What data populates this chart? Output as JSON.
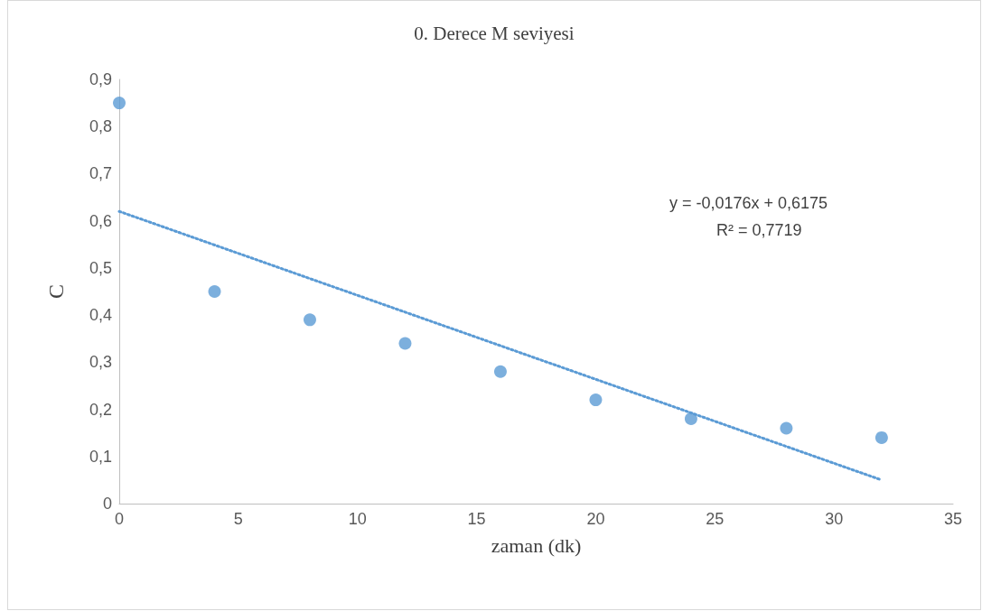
{
  "chart_data": {
    "type": "scatter",
    "title": "0. Derece M seviyesi",
    "xlabel": "zaman (dk)",
    "ylabel": "C",
    "annotations": [
      "y = -0,0176x + 0,6175",
      "R² = 0,7719"
    ],
    "x": [
      0,
      4,
      8,
      12,
      16,
      20,
      24,
      28,
      32
    ],
    "series": [
      {
        "color": "#5b9bd5",
        "marker": "circle",
        "values": [
          0.85,
          0.45,
          0.39,
          0.34,
          0.28,
          0.22,
          0.18,
          0.16,
          0.14
        ]
      },
      {
        "type": "line",
        "color": "#5b9bd5",
        "marker": "none",
        "line_style": "dotted",
        "x": [
          0,
          32
        ],
        "values": [
          0.62,
          0.05
        ]
      }
    ],
    "xlim": [
      0,
      35
    ],
    "xticks": [
      0,
      5,
      10,
      15,
      20,
      25,
      30,
      35
    ],
    "ylim": [
      0,
      0.9
    ],
    "yticks": [
      0,
      {
        "value": 0.1,
        "label": "0,1"
      },
      {
        "value": 0.2,
        "label": "0,2"
      },
      {
        "value": 0.3,
        "label": "0,3"
      },
      {
        "value": 0.4,
        "label": "0,4"
      },
      {
        "value": 0.5,
        "label": "0,5"
      },
      {
        "value": 0.6,
        "label": "0,6"
      },
      {
        "value": 0.7,
        "label": "0,7"
      },
      {
        "value": 0.8,
        "label": "0,8"
      },
      {
        "value": 0.9,
        "label": "0,9"
      }
    ],
    "grid": false
  }
}
